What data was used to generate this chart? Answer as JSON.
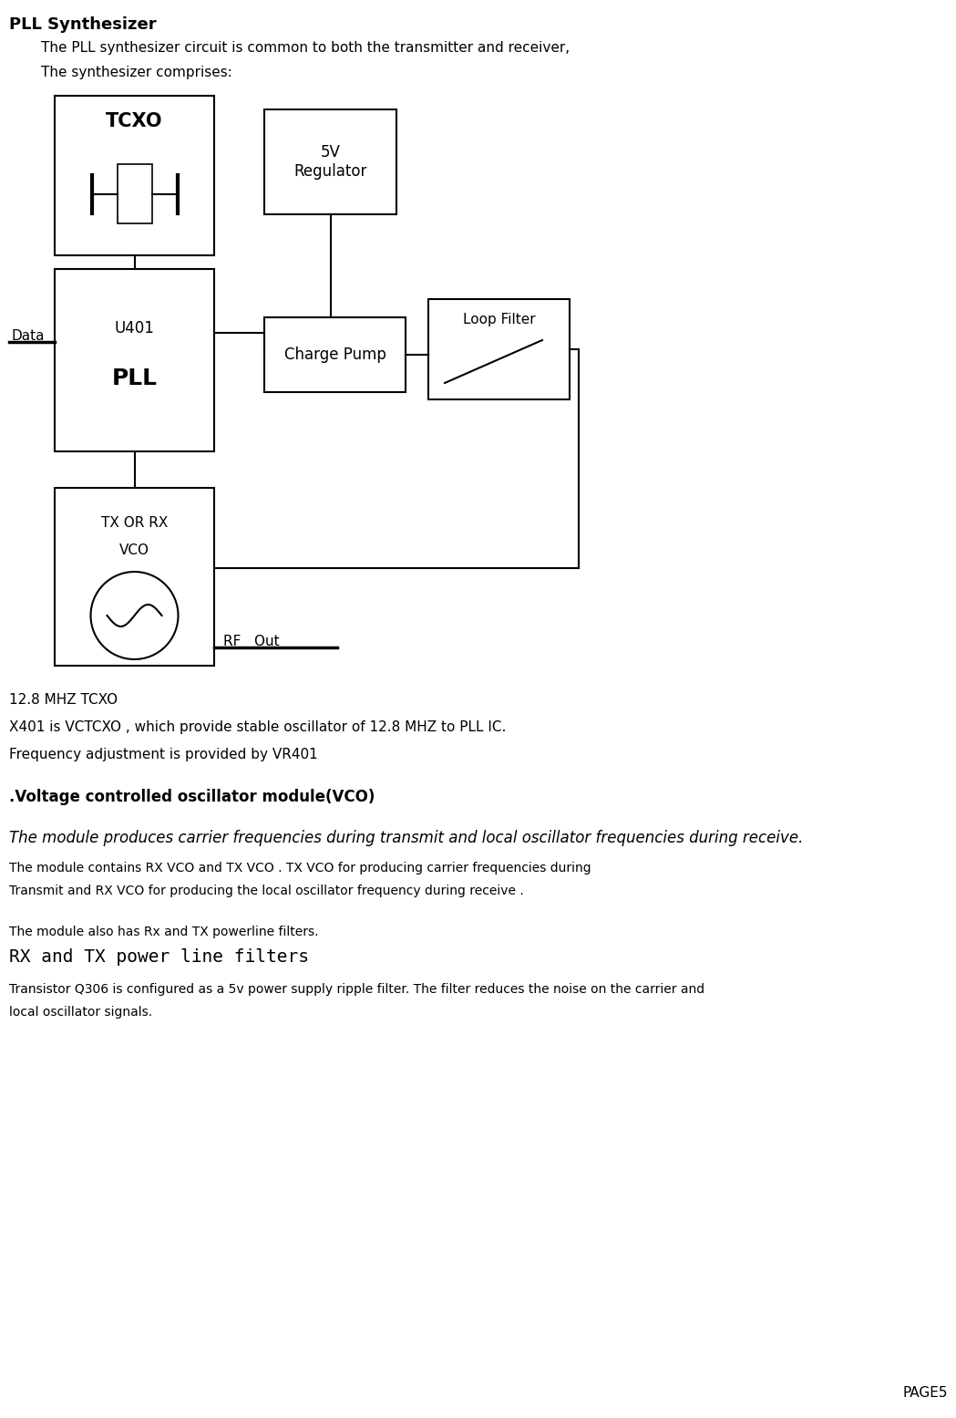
{
  "title": "PLL Synthesizer",
  "subtitle1": "The PLL synthesizer circuit is common to both the transmitter and receiver,",
  "subtitle2": "The synthesizer comprises:",
  "page": "PAGE5",
  "text_tcxo": "TCXO",
  "text_5v": "5V\nRegulator",
  "text_u401": "U401",
  "text_pll": "PLL",
  "text_charge_pump": "Charge Pump",
  "text_loop_filter": "Loop Filter",
  "text_tx_or_rx": "TX OR RX",
  "text_vco": "VCO",
  "text_data": "Data",
  "text_rf_out": "RF   Out",
  "text_12_8_tcxo": "12.8 MHZ TCXO",
  "text_x401": "X401 is VCTCXO , which provide stable oscillator of 12.8 MHZ to PLL IC.",
  "text_freq_adj": "Frequency adjustment is provided by VR401",
  "text_vco_section": ".Voltage controlled oscillator module(VCO)",
  "text_module_produces": "The module produces carrier frequencies during transmit and local oscillator frequencies during receive.",
  "text_module_contains": "The module contains RX VCO and TX VCO . TX VCO for producing carrier frequencies during",
  "text_transmit": "Transmit and RX VCO for producing the local oscillator frequency during receive .",
  "text_module_also": "The module also has Rx and TX powerline filters.",
  "text_rx_tx_filters": "RX and TX power line filters",
  "text_transistor": "Transistor Q306 is configured as a 5v power supply ripple filter. The filter reduces the noise on the carrier and",
  "text_local_osc": "local oscillator signals.",
  "bg_color": "#ffffff",
  "line_color": "#000000"
}
